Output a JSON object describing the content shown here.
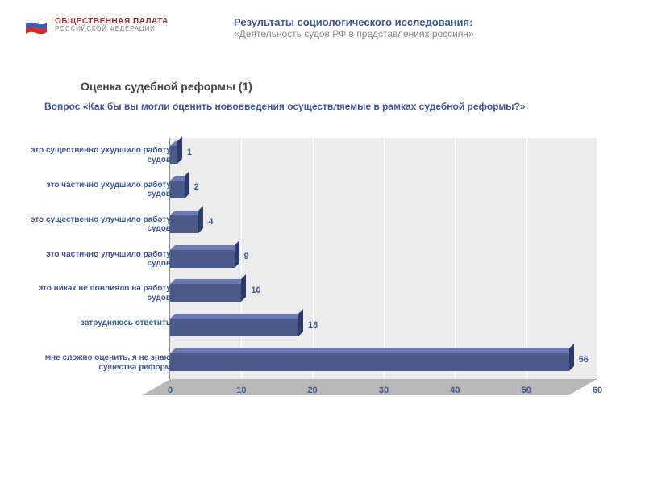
{
  "org": {
    "main": "ОБЩЕСТВЕННАЯ ПАЛАТА",
    "main_color": "#a03030",
    "sub": "РОССИЙСКОЙ ФЕДЕРАЦИИ",
    "sub_color": "#808080",
    "flag_colors": [
      "#ffffff",
      "#3b5bbf",
      "#d52b1e"
    ]
  },
  "title": {
    "main": "Результаты социологического исследования:",
    "sub": "«Деятельность судов РФ в представлениях россиян»"
  },
  "section": "Оценка судебной реформы (1)",
  "question": "Вопрос «Как бы вы могли оценить нововведения осуществляемые в рамках судебной реформы?»",
  "chart": {
    "type": "bar-horizontal-3d",
    "xlim": [
      0,
      60
    ],
    "xtick_step": 10,
    "xticks": [
      0,
      10,
      20,
      30,
      40,
      50,
      60
    ],
    "bar_color_front": "#4a5a8a",
    "bar_color_top": "#6a7ab0",
    "bar_color_side": "#2a3a6a",
    "plot_bg": "#ececec",
    "grid_color": "#ffffff",
    "text_color": "#3b5998",
    "items": [
      {
        "label": "это существенно ухудшило работу судов",
        "value": 1
      },
      {
        "label": "это частично ухудшило работу судов",
        "value": 2
      },
      {
        "label": "это существенно улучшило работу судов",
        "value": 4
      },
      {
        "label": "это частично улучшило работу судов",
        "value": 9
      },
      {
        "label": "это никак не повлияло на работу судов",
        "value": 10
      },
      {
        "label": "затрудняюсь ответить",
        "value": 18
      },
      {
        "label": "мне сложно оценить, я не знаю существа реформ",
        "value": 56
      }
    ]
  }
}
